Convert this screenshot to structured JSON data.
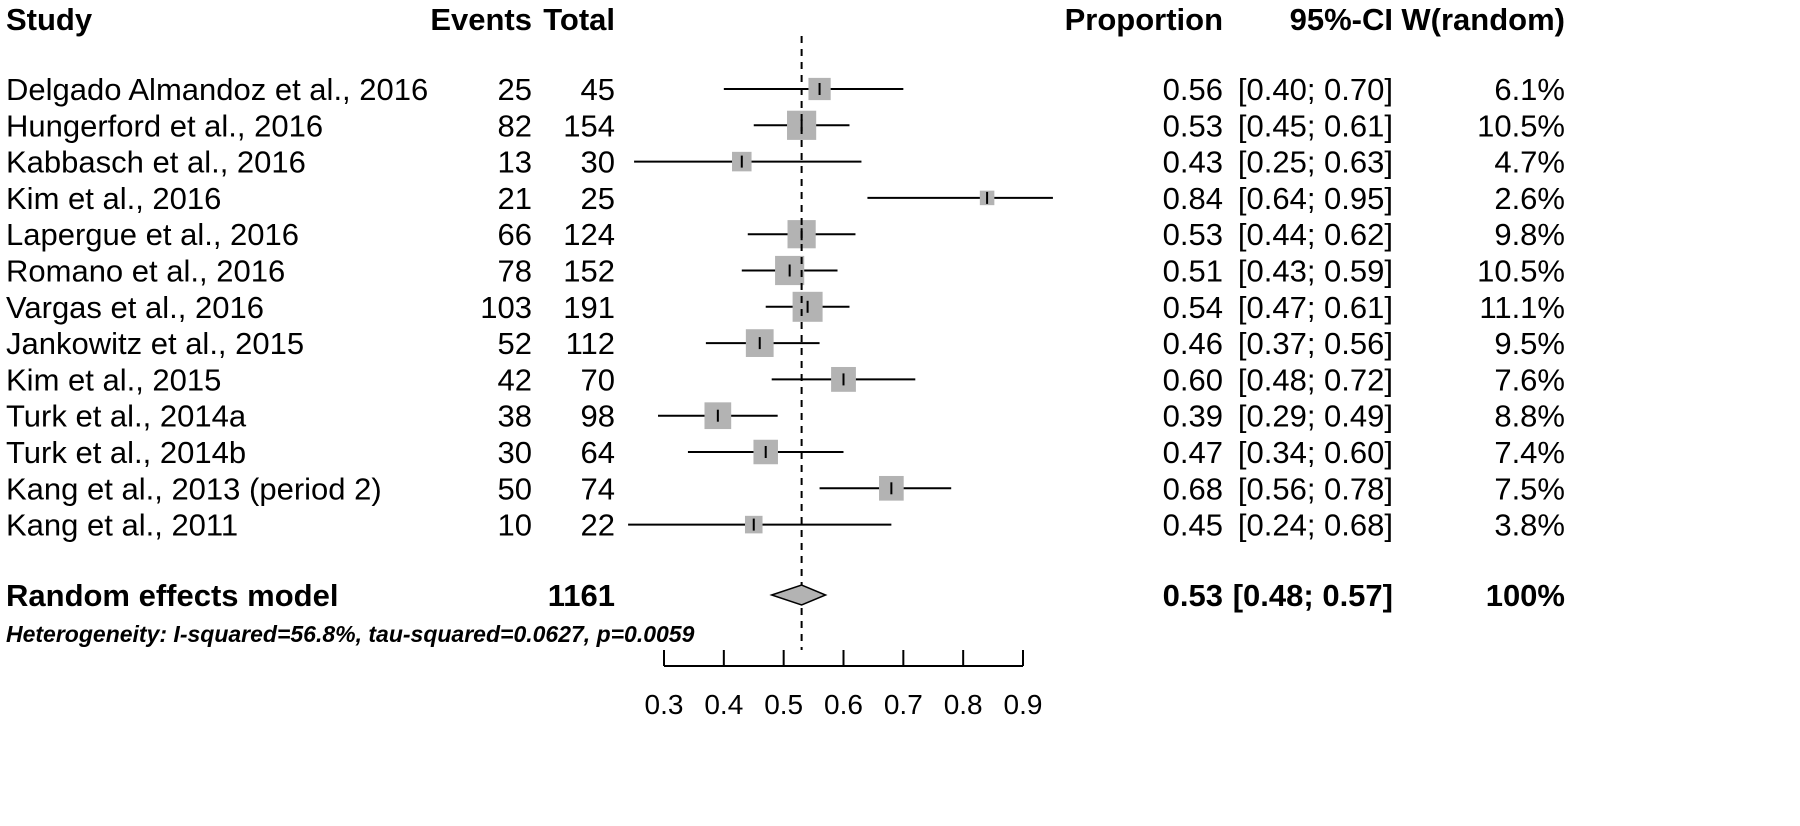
{
  "chart_data": {
    "type": "forest",
    "columns": {
      "study": "Study",
      "events": "Events",
      "total": "Total",
      "proportion": "Proportion",
      "ci": "95%-CI",
      "weight": "W(random)"
    },
    "studies": [
      {
        "study": "Delgado Almandoz et al., 2016",
        "events": "25",
        "total": "45",
        "proportion": 0.56,
        "lower": 0.4,
        "upper": 0.7,
        "prop_text": "0.56",
        "ci_text": "[0.40; 0.70]",
        "weight_text": "6.1%",
        "weight": 6.1
      },
      {
        "study": "Hungerford et al., 2016",
        "events": "82",
        "total": "154",
        "proportion": 0.53,
        "lower": 0.45,
        "upper": 0.61,
        "prop_text": "0.53",
        "ci_text": "[0.45; 0.61]",
        "weight_text": "10.5%",
        "weight": 10.5
      },
      {
        "study": "Kabbasch et al., 2016",
        "events": "13",
        "total": "30",
        "proportion": 0.43,
        "lower": 0.25,
        "upper": 0.63,
        "prop_text": "0.43",
        "ci_text": "[0.25; 0.63]",
        "weight_text": "4.7%",
        "weight": 4.7
      },
      {
        "study": "Kim et al., 2016",
        "events": "21",
        "total": "25",
        "proportion": 0.84,
        "lower": 0.64,
        "upper": 0.95,
        "prop_text": "0.84",
        "ci_text": "[0.64; 0.95]",
        "weight_text": "2.6%",
        "weight": 2.6
      },
      {
        "study": "Lapergue et al., 2016",
        "events": "66",
        "total": "124",
        "proportion": 0.53,
        "lower": 0.44,
        "upper": 0.62,
        "prop_text": "0.53",
        "ci_text": "[0.44; 0.62]",
        "weight_text": "9.8%",
        "weight": 9.8
      },
      {
        "study": "Romano et al., 2016",
        "events": "78",
        "total": "152",
        "proportion": 0.51,
        "lower": 0.43,
        "upper": 0.59,
        "prop_text": "0.51",
        "ci_text": "[0.43; 0.59]",
        "weight_text": "10.5%",
        "weight": 10.5
      },
      {
        "study": "Vargas et al., 2016",
        "events": "103",
        "total": "191",
        "proportion": 0.54,
        "lower": 0.47,
        "upper": 0.61,
        "prop_text": "0.54",
        "ci_text": "[0.47; 0.61]",
        "weight_text": "11.1%",
        "weight": 11.1
      },
      {
        "study": "Jankowitz et al., 2015",
        "events": "52",
        "total": "112",
        "proportion": 0.46,
        "lower": 0.37,
        "upper": 0.56,
        "prop_text": "0.46",
        "ci_text": "[0.37; 0.56]",
        "weight_text": "9.5%",
        "weight": 9.5
      },
      {
        "study": "Kim et al., 2015",
        "events": "42",
        "total": "70",
        "proportion": 0.6,
        "lower": 0.48,
        "upper": 0.72,
        "prop_text": "0.60",
        "ci_text": "[0.48; 0.72]",
        "weight_text": "7.6%",
        "weight": 7.6
      },
      {
        "study": "Turk et al., 2014a",
        "events": "38",
        "total": "98",
        "proportion": 0.39,
        "lower": 0.29,
        "upper": 0.49,
        "prop_text": "0.39",
        "ci_text": "[0.29; 0.49]",
        "weight_text": "8.8%",
        "weight": 8.8
      },
      {
        "study": "Turk et al., 2014b",
        "events": "30",
        "total": "64",
        "proportion": 0.47,
        "lower": 0.34,
        "upper": 0.6,
        "prop_text": "0.47",
        "ci_text": "[0.34; 0.60]",
        "weight_text": "7.4%",
        "weight": 7.4
      },
      {
        "study": "Kang et al., 2013 (period 2)",
        "events": "50",
        "total": "74",
        "proportion": 0.68,
        "lower": 0.56,
        "upper": 0.78,
        "prop_text": "0.68",
        "ci_text": "[0.56; 0.78]",
        "weight_text": "7.5%",
        "weight": 7.5
      },
      {
        "study": "Kang et al., 2011",
        "events": "10",
        "total": "22",
        "proportion": 0.45,
        "lower": 0.24,
        "upper": 0.68,
        "prop_text": "0.45",
        "ci_text": "[0.24; 0.68]",
        "weight_text": "3.8%",
        "weight": 3.8
      }
    ],
    "pooled": {
      "label": "Random effects model",
      "total": "1161",
      "proportion": 0.53,
      "lower": 0.48,
      "upper": 0.57,
      "prop_text": "0.53",
      "ci_text": "[0.48; 0.57]",
      "weight_text": "100%"
    },
    "heterogeneity": "Heterogeneity: I-squared=56.8%, tau-squared=0.0627, p=0.0059",
    "x_axis": {
      "ticks": [
        0.3,
        0.4,
        0.5,
        0.6,
        0.7,
        0.8,
        0.9
      ],
      "tick_labels": [
        "0.3",
        "0.4",
        "0.5",
        "0.6",
        "0.7",
        "0.8",
        "0.9"
      ],
      "range": [
        0.3,
        0.9
      ]
    },
    "reference_line": 0.53,
    "square_color": "#b3b3b3",
    "diamond_color": "#b3b3b3"
  }
}
